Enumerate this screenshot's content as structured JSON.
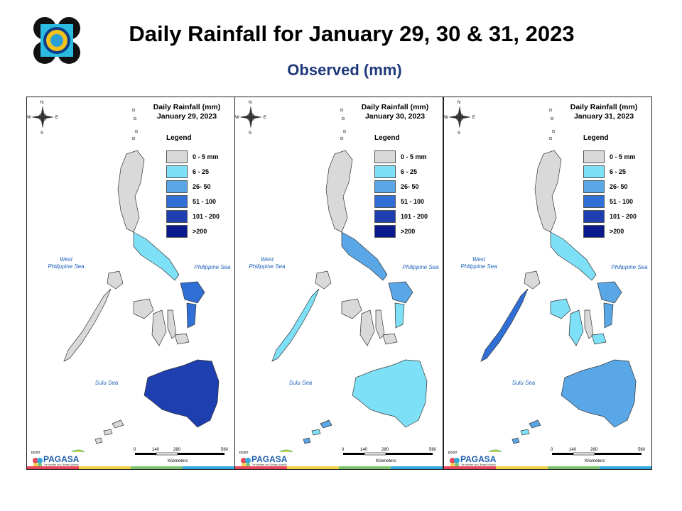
{
  "header": {
    "title": "Daily Rainfall for January 29, 30 & 31, 2023",
    "subtitle": "Observed (mm)"
  },
  "panels": [
    {
      "title_line1": "Daily Rainfall (mm)",
      "date": "January 29, 2023",
      "legend_title": "Legend"
    },
    {
      "title_line1": "Daily Rainfall (mm)",
      "date": "January 30, 2023",
      "legend_title": "Legend"
    },
    {
      "title_line1": "Daily Rainfall (mm)",
      "date": "January 31, 2023",
      "legend_title": "Legend"
    }
  ],
  "legend": [
    {
      "label": "0 - 5 mm",
      "color": "#d9d9d9"
    },
    {
      "label": "6 - 25",
      "color": "#7ee0f7"
    },
    {
      "label": "26- 50",
      "color": "#5aa7e8"
    },
    {
      "label": "51 - 100",
      "color": "#2f6fd6"
    },
    {
      "label": "101 - 200",
      "color": "#1e3fb0"
    },
    {
      "label": ">200",
      "color": "#0a1a8c"
    }
  ],
  "seas": {
    "west_line1": "West",
    "west_line2": "Philippine Sea",
    "east": "Philippine Sea",
    "sulu": "Sulu Sea"
  },
  "compass": {
    "n": "N",
    "s": "S",
    "e": "E",
    "w": "W"
  },
  "scale": {
    "t0": "0",
    "t1": "140",
    "t2": "280",
    "t3": "560",
    "unit": "Kilometers"
  },
  "brand": {
    "small": "DOST",
    "name": "PAGASA",
    "tag": "The Weather and Climate Authority"
  }
}
